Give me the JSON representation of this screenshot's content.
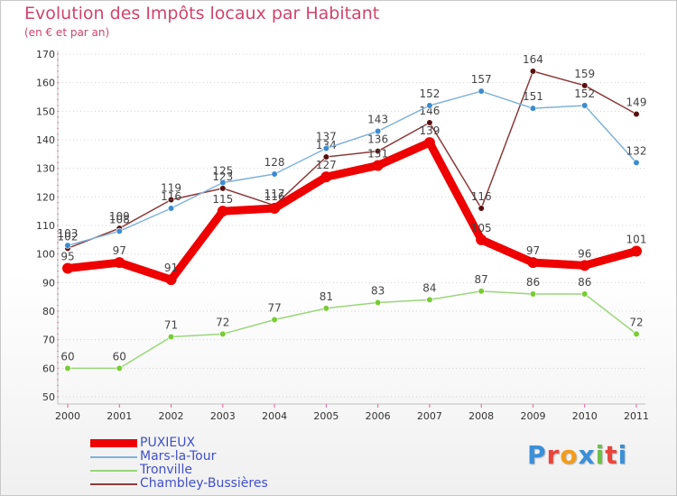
{
  "title": "Evolution des Impôts locaux par Habitant",
  "subtitle": "(en € et par an)",
  "logo": {
    "text": "Proxiti",
    "colors": [
      "#3a8fd8",
      "#e8453c",
      "#f39c1a",
      "#3a8fd8",
      "#6cc04a",
      "#e8453c",
      "#3a8fd8"
    ]
  },
  "chart_data": {
    "type": "line",
    "title": "Evolution des Impôts locaux par Habitant",
    "subtitle": "(en € et par an)",
    "xlabel": "",
    "ylabel": "",
    "x": [
      "2000",
      "2001",
      "2002",
      "2003",
      "2004",
      "2005",
      "2006",
      "2007",
      "2008",
      "2009",
      "2010",
      "2011"
    ],
    "ylim": [
      50,
      170
    ],
    "yticks": [
      50,
      60,
      70,
      80,
      90,
      100,
      110,
      120,
      130,
      140,
      150,
      160,
      170
    ],
    "grid": "horizontal-dotted",
    "legend_position": "bottom-left",
    "series": [
      {
        "name": "Tronville",
        "color": "#99d67a",
        "marker": "#77cc33",
        "width": "thin",
        "values": [
          60,
          60,
          71,
          72,
          77,
          81,
          83,
          84,
          87,
          86,
          86,
          72
        ],
        "labels": [
          "60",
          "60",
          "71",
          "72",
          "77",
          "81",
          "83",
          "84",
          "87",
          "86",
          "86",
          "72"
        ]
      },
      {
        "name": "Chambley-Bussières",
        "color": "#8c3a3a",
        "marker": "#5a1010",
        "width": "thin",
        "values": [
          102,
          109,
          119,
          123,
          117,
          134,
          136,
          146,
          116,
          164,
          159,
          149
        ],
        "labels": [
          "102",
          "109",
          "119",
          "123",
          "117",
          "134",
          "136",
          "146",
          "116",
          "164",
          "159",
          "149"
        ]
      },
      {
        "name": "Mars-la-Tour",
        "color": "#7fb2d8",
        "marker": "#3c8cd0",
        "width": "thin",
        "values": [
          103,
          108,
          116,
          125,
          128,
          137,
          143,
          152,
          157,
          151,
          152,
          132
        ],
        "labels": [
          "103",
          "108",
          "116",
          "125",
          "128",
          "137",
          "143",
          "152",
          "157",
          "151",
          "152",
          "132"
        ]
      },
      {
        "name": "PUXIEUX",
        "color": "#ee0000",
        "marker": "#ee0000",
        "width": "thick",
        "values": [
          95,
          97,
          91,
          115,
          116,
          127,
          131,
          139,
          105,
          97,
          96,
          101
        ],
        "labels": [
          "95",
          "97",
          "91",
          "115",
          "116",
          "127",
          "131",
          "139",
          "105",
          "97",
          "96",
          "101"
        ]
      }
    ]
  },
  "legend": [
    {
      "label": "PUXIEUX",
      "color": "#ee0000",
      "width": "thick"
    },
    {
      "label": "Mars-la-Tour",
      "color": "#7fb2d8",
      "width": "thin"
    },
    {
      "label": "Tronville",
      "color": "#99d67a",
      "width": "thin"
    },
    {
      "label": "Chambley-Bussières",
      "color": "#8c3a3a",
      "width": "thin"
    }
  ]
}
